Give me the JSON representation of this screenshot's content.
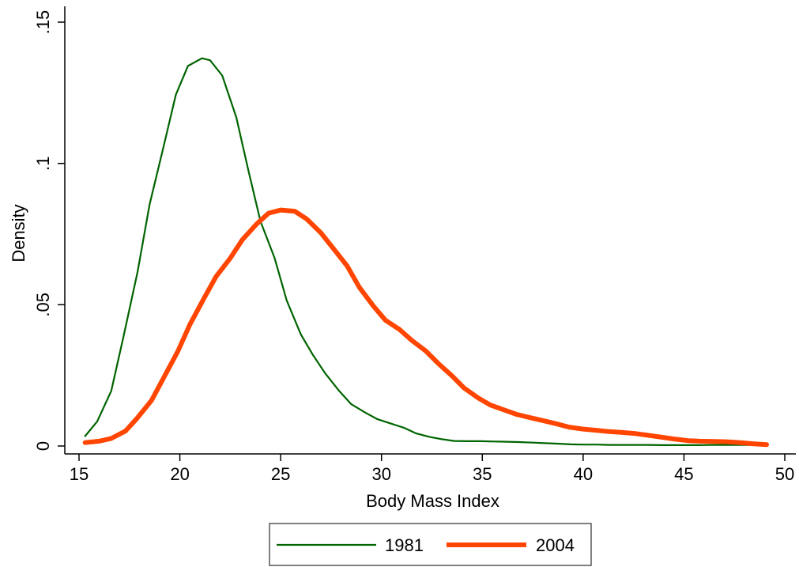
{
  "chart_data": {
    "type": "line",
    "title": "",
    "xlabel": "Body Mass Index",
    "ylabel": "Density",
    "xlim": [
      15,
      50
    ],
    "ylim": [
      0,
      0.15
    ],
    "xticks": [
      15,
      20,
      25,
      30,
      35,
      40,
      45,
      50
    ],
    "xtick_labels": [
      "15",
      "20",
      "25",
      "30",
      "35",
      "40",
      "45",
      "50"
    ],
    "yticks": [
      0,
      0.05,
      0.1,
      0.15
    ],
    "ytick_labels": [
      "0",
      ".05",
      ".1",
      ".15"
    ],
    "grid": false,
    "legend_placement": "bottom",
    "series": [
      {
        "name": "1981",
        "color": "#006400",
        "x": [
          15.3,
          15.9,
          16.6,
          17.2,
          17.9,
          18.5,
          19.2,
          19.8,
          20.4,
          21.1,
          21.5,
          22.1,
          22.8,
          23.4,
          24.0,
          24.7,
          25.3,
          26.0,
          26.6,
          27.2,
          27.9,
          28.5,
          29.2,
          29.8,
          30.4,
          31.1,
          31.7,
          32.4,
          33.0,
          33.6,
          34.3,
          34.9,
          35.6,
          36.2,
          36.8,
          37.5,
          38.1,
          38.8,
          39.4,
          40.0,
          40.7,
          41.3,
          42.0,
          42.6,
          43.2,
          43.9,
          44.5,
          45.2,
          45.8,
          46.4,
          47.1,
          47.7,
          48.4,
          49.0
        ],
        "y": [
          0.0035,
          0.0087,
          0.0195,
          0.0385,
          0.0615,
          0.0855,
          0.1062,
          0.1243,
          0.1345,
          0.1372,
          0.1365,
          0.1311,
          0.1163,
          0.0975,
          0.0795,
          0.0665,
          0.0515,
          0.0395,
          0.0322,
          0.0258,
          0.0195,
          0.0148,
          0.0118,
          0.0095,
          0.0081,
          0.0065,
          0.0045,
          0.0032,
          0.0024,
          0.0018,
          0.0017,
          0.0017,
          0.0016,
          0.0015,
          0.0014,
          0.0012,
          0.001,
          0.0008,
          0.0006,
          0.0005,
          0.0005,
          0.0004,
          0.0004,
          0.0004,
          0.0004,
          0.0003,
          0.0003,
          0.0003,
          0.0003,
          0.0004,
          0.0004,
          0.0004,
          0.0004,
          0.0004
        ]
      },
      {
        "name": "2004",
        "color": "#ff4500",
        "x": [
          15.3,
          16.0,
          16.6,
          17.3,
          17.9,
          18.6,
          19.2,
          19.9,
          20.5,
          21.2,
          21.8,
          22.5,
          23.1,
          23.8,
          24.4,
          25.0,
          25.7,
          26.3,
          27.0,
          27.6,
          28.3,
          28.9,
          29.6,
          30.2,
          30.9,
          31.5,
          32.2,
          32.8,
          33.5,
          34.1,
          34.8,
          35.4,
          36.1,
          36.7,
          37.4,
          38.0,
          38.7,
          39.3,
          40.0,
          40.6,
          41.3,
          41.9,
          42.6,
          43.2,
          43.9,
          44.5,
          45.2,
          45.8,
          46.5,
          47.1,
          47.8,
          48.4,
          49.1
        ],
        "y": [
          0.0012,
          0.0017,
          0.0027,
          0.0053,
          0.01,
          0.0162,
          0.0242,
          0.0335,
          0.043,
          0.0523,
          0.06,
          0.0665,
          0.073,
          0.0785,
          0.0824,
          0.0835,
          0.0831,
          0.0803,
          0.0754,
          0.07,
          0.0637,
          0.0562,
          0.0495,
          0.0445,
          0.0412,
          0.0374,
          0.0336,
          0.0293,
          0.0248,
          0.0205,
          0.017,
          0.0145,
          0.0127,
          0.0112,
          0.01,
          0.009,
          0.0078,
          0.0067,
          0.006,
          0.0056,
          0.0051,
          0.0048,
          0.0044,
          0.0038,
          0.0031,
          0.0025,
          0.0019,
          0.0017,
          0.0016,
          0.0015,
          0.0012,
          0.0008,
          0.0005
        ]
      }
    ]
  }
}
